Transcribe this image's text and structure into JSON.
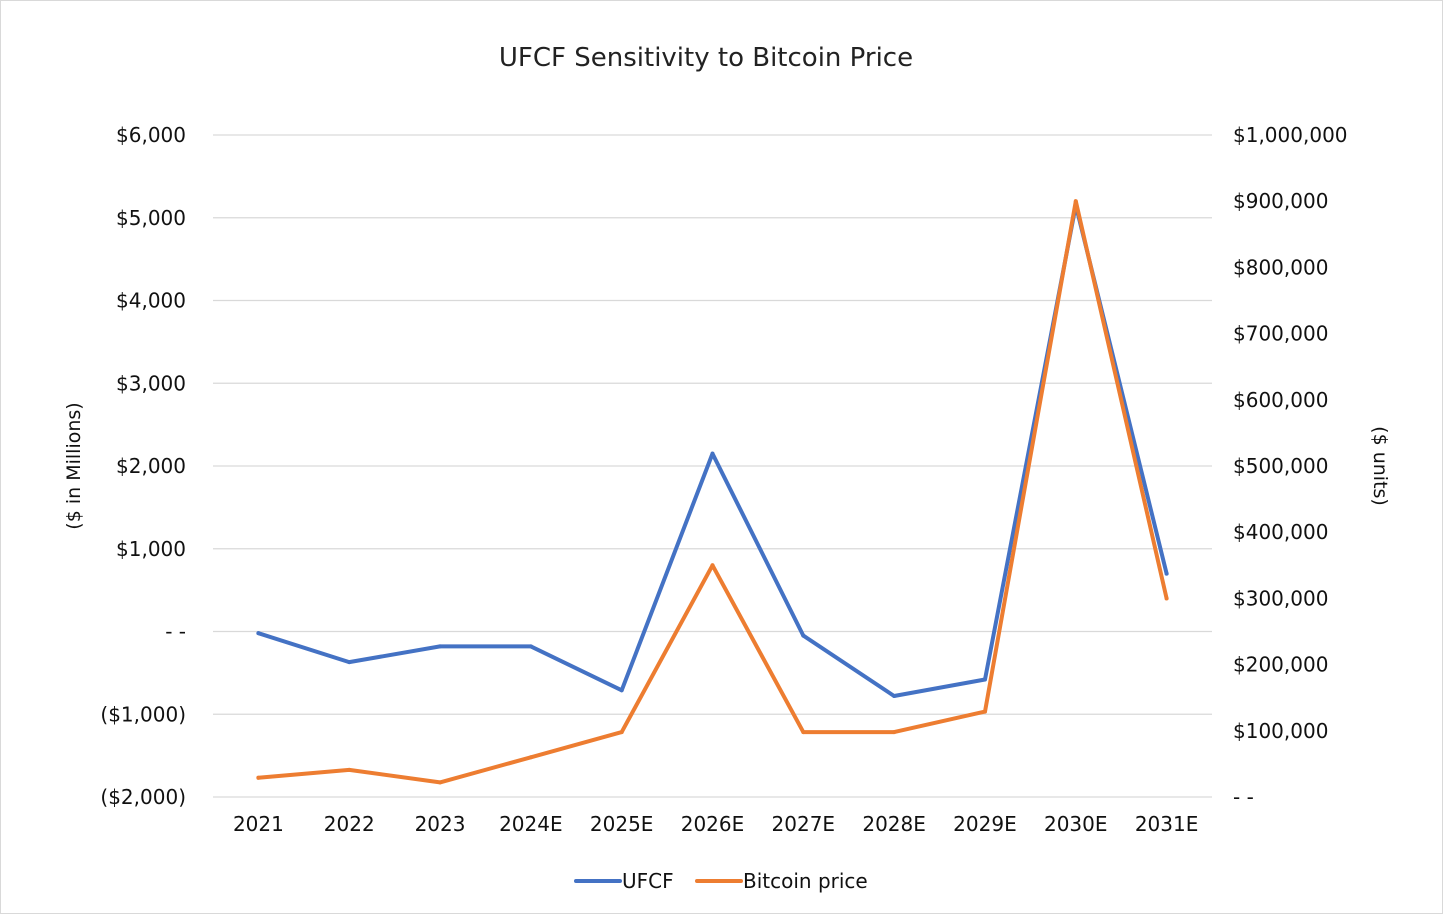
{
  "chart_data": {
    "type": "line",
    "title": "UFCF Sensitivity to Bitcoin Price",
    "categories": [
      "2021",
      "2022",
      "2023",
      "2024E",
      "2025E",
      "2026E",
      "2027E",
      "2028E",
      "2029E",
      "2030E",
      "2031E"
    ],
    "series": [
      {
        "name": "UFCF",
        "axis": "left",
        "color": "#4472C4",
        "values": [
          -20,
          -370,
          -180,
          -180,
          -710,
          2150,
          -50,
          -780,
          -580,
          5150,
          700
        ]
      },
      {
        "name": "Bitcoin price",
        "axis": "right",
        "color": "#ED7D31",
        "values": [
          29000,
          41000,
          22000,
          60000,
          98000,
          350000,
          98000,
          98000,
          129000,
          900000,
          300000
        ]
      }
    ],
    "y_left": {
      "label": "($ in Millions)",
      "ylim": [
        -2000,
        6000
      ],
      "ticks": [
        6000,
        5000,
        4000,
        3000,
        2000,
        1000,
        0,
        -1000,
        -2000
      ],
      "tick_labels": [
        "$6,000",
        "$5,000",
        "$4,000",
        "$3,000",
        "$2,000",
        "$1,000",
        "- -",
        "($1,000)",
        "($2,000)"
      ]
    },
    "y_right": {
      "label": "($ units)",
      "ylim": [
        0,
        1000000
      ],
      "ticks": [
        1000000,
        900000,
        800000,
        700000,
        600000,
        500000,
        400000,
        300000,
        200000,
        100000,
        0
      ],
      "tick_labels": [
        "$1,000,000",
        "$900,000",
        "$800,000",
        "$700,000",
        "$600,000",
        "$500,000",
        "$400,000",
        "$300,000",
        "$200,000",
        "$100,000",
        "- -"
      ]
    },
    "grid": true,
    "legend_position": "bottom-center"
  }
}
